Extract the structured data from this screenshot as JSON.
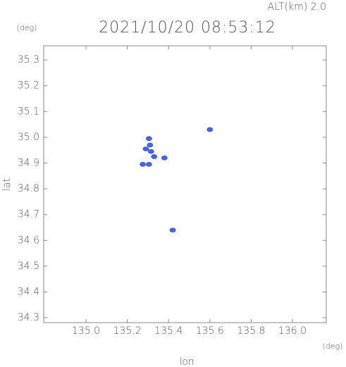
{
  "chart_data": {
    "type": "scatter",
    "title": "2021/10/20 08:53:12",
    "subtitle": "ALT(km) 2.0",
    "x_label": "lon",
    "y_label": "lat",
    "x_unit": "(deg)",
    "y_unit": "(deg)",
    "color": "#4a63f0",
    "x": [
      135.275,
      135.305,
      135.33,
      135.315,
      135.29,
      135.31,
      135.305,
      135.6,
      135.42,
      135.38
    ],
    "values": [
      34.895,
      34.895,
      34.925,
      34.945,
      34.955,
      34.97,
      34.995,
      35.03,
      34.64,
      34.92
    ],
    "xlim": [
      134.795,
      136.164
    ],
    "ylim": [
      34.281,
      35.355
    ],
    "xticks": [
      {
        "value": 135,
        "label": "135.0"
      },
      135.2,
      135.4,
      135.6,
      135.8,
      {
        "value": 136,
        "label": "136.0"
      }
    ],
    "yticks": [
      34.3,
      34.4,
      34.5,
      34.6,
      34.7,
      34.8,
      34.9,
      {
        "value": 35,
        "label": "35.0"
      },
      35.1,
      35.2,
      35.3
    ]
  }
}
